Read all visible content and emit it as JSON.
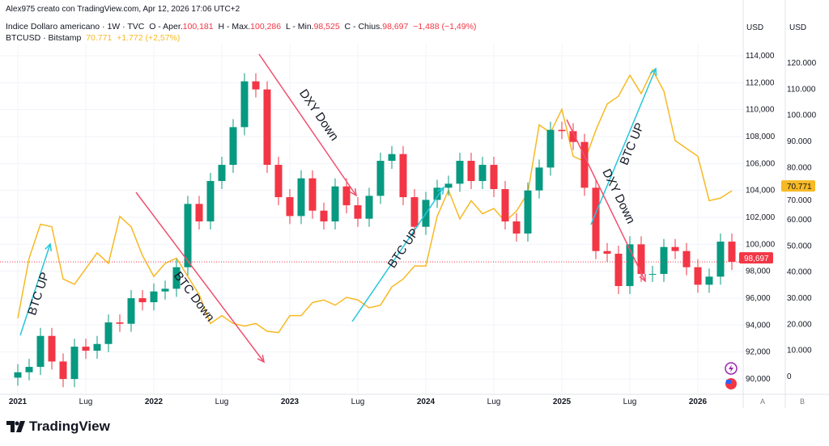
{
  "header": {
    "credit": "Alex975 creato con TradingView.com, Apr 12, 2026 17:06 UTC+2",
    "dxy_name": "Indice Dollaro americano · 1W · TVC",
    "o_label": "O - Aper.",
    "o": "100,181",
    "h_label": "H - Max.",
    "h": "100,286",
    "l_label": "L - Min.",
    "l": "98,525",
    "c_label": "C - Chius.",
    "c": "98,697",
    "chg": "−1,488 (−1,49%)",
    "btc_name": "BTCUSD · Bitstamp",
    "btc_last": "70.771",
    "btc_chg": "+1.772 (+2,57%)"
  },
  "logo": "TradingView",
  "colors": {
    "up": "#089981",
    "down": "#f23645",
    "btc": "#f7b924",
    "arrow_up": "#26c6da",
    "arrow_down": "#f0506e"
  },
  "chart_data": {
    "type": "candlestick+line",
    "x_ticks": [
      "2021",
      "Lug",
      "2022",
      "Lug",
      "2023",
      "Lug",
      "2024",
      "Lug",
      "2025",
      "Lug",
      "2026"
    ],
    "axis_a": {
      "unit": "USD",
      "ticks": [
        "114,000",
        "112,000",
        "110,000",
        "108,000",
        "106,000",
        "104,000",
        "102,000",
        "100,000",
        "98,000",
        "96,000",
        "94,000",
        "92,000",
        "90,000"
      ],
      "last": "98,697",
      "label": "A"
    },
    "axis_b": {
      "unit": "USD",
      "ticks": [
        "120.000",
        "110.000",
        "100.000",
        "90.000",
        "80.000",
        "70.000",
        "60.000",
        "50.000",
        "40.000",
        "30.000",
        "20.000",
        "10.000",
        "0"
      ],
      "last": "70.771",
      "label": "B"
    },
    "dxy_monthly_close": [
      90.5,
      90.9,
      93.2,
      91.3,
      90.0,
      92.4,
      92.1,
      92.6,
      94.2,
      94.1,
      96.0,
      95.7,
      96.5,
      96.7,
      98.3,
      103.0,
      101.7,
      104.7,
      105.9,
      108.7,
      112.1,
      111.5,
      105.9,
      103.5,
      102.1,
      104.9,
      102.5,
      101.7,
      104.3,
      102.9,
      101.9,
      103.6,
      106.2,
      106.7,
      103.5,
      101.3,
      103.3,
      104.2,
      104.5,
      106.2,
      104.7,
      105.9,
      104.1,
      101.7,
      100.8,
      104.0,
      105.7,
      108.5,
      108.4,
      107.6,
      104.2,
      99.5,
      99.3,
      96.9,
      100.0,
      97.8,
      97.8,
      99.8,
      99.5,
      98.3,
      97.0,
      97.6,
      100.2,
      98.697
    ],
    "btc_monthly_close_thousands": [
      22,
      45,
      58,
      57,
      37,
      35,
      41,
      47,
      43,
      61,
      57,
      46,
      38,
      43,
      45,
      38,
      31,
      20,
      23,
      20,
      19,
      20,
      17,
      16.5,
      23,
      23,
      28,
      29,
      27,
      30,
      29,
      26,
      27,
      34,
      37,
      42,
      42,
      61,
      71,
      60,
      67,
      62,
      64,
      59,
      63,
      70,
      96,
      93,
      102,
      84,
      82,
      94,
      104,
      107,
      115,
      108,
      117,
      109,
      90,
      87,
      84,
      67,
      68,
      70.771
    ],
    "annotations": [
      {
        "text": "BTC UP",
        "color": "up"
      },
      {
        "text": "BTC Down",
        "color": "down"
      },
      {
        "text": "DXY Down",
        "color": "down"
      },
      {
        "text": "BTC UP",
        "color": "up"
      },
      {
        "text": "BTC UP",
        "color": "up"
      },
      {
        "text": "DXY Down",
        "color": "down"
      }
    ]
  }
}
